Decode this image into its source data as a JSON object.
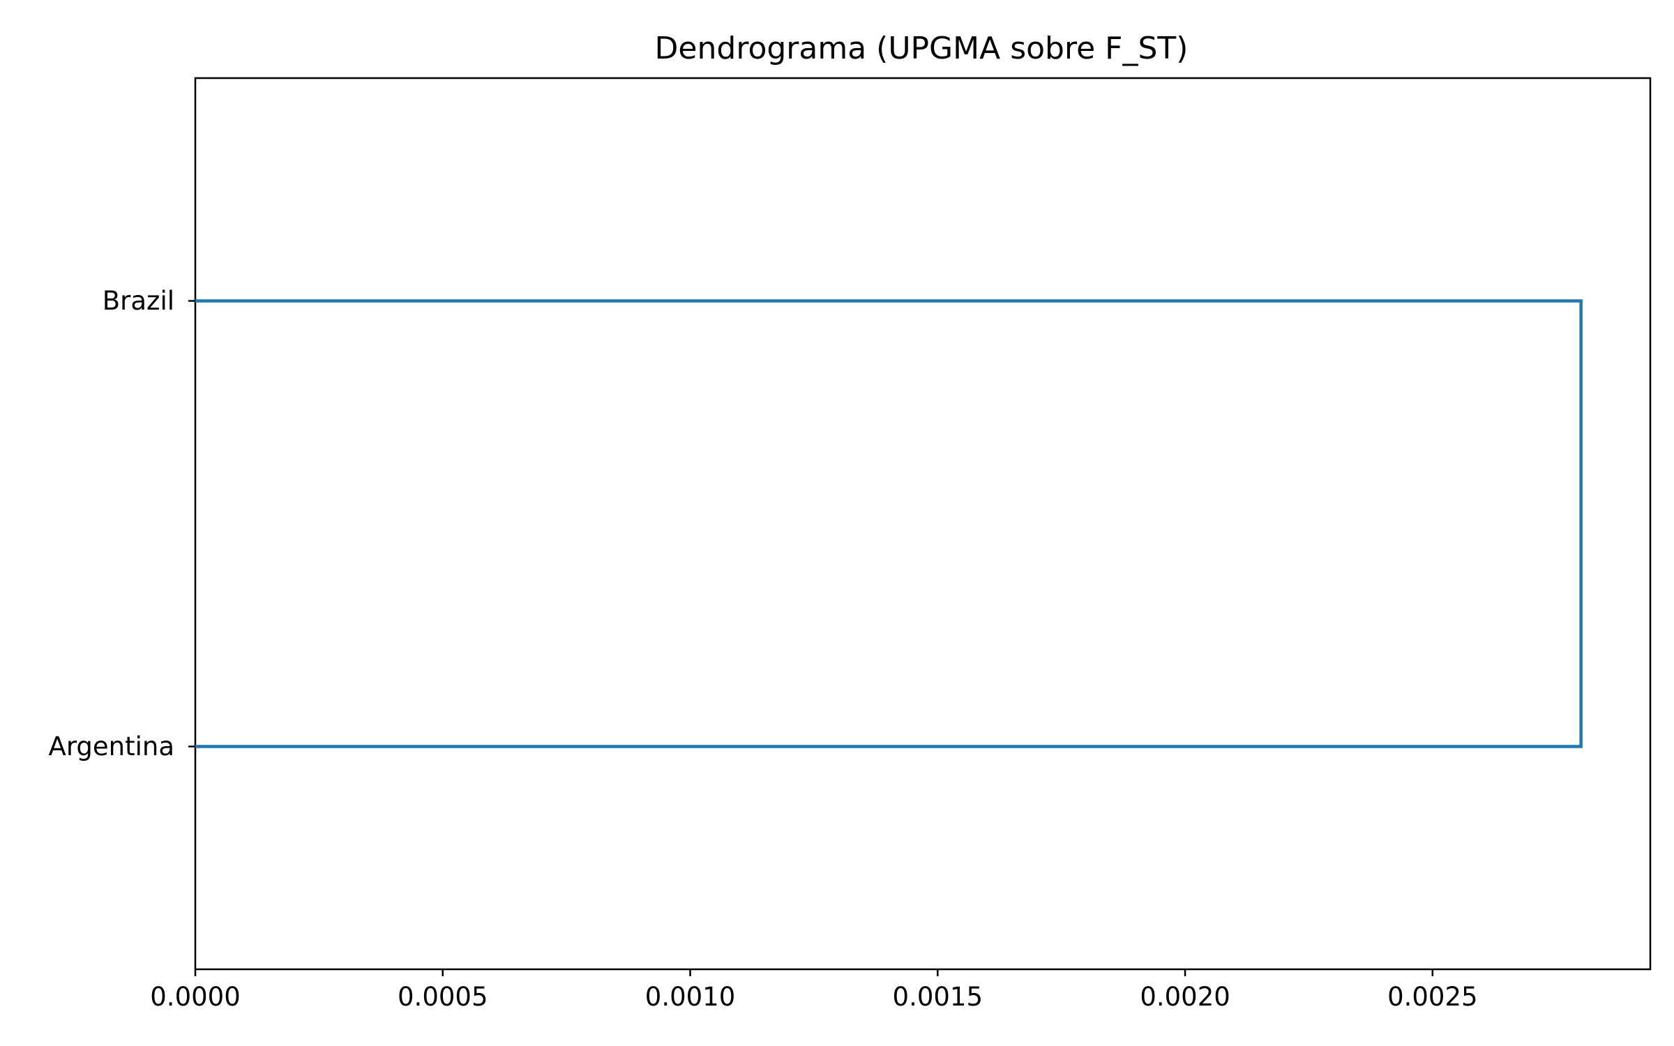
{
  "chart_data": {
    "type": "dendrogram",
    "title": "Dendrograma (UPGMA sobre F_ST)",
    "xlabel": "",
    "ylabel": "",
    "orientation": "right",
    "xlim": [
      0,
      0.00294
    ],
    "x_ticks": [
      0.0,
      0.0005,
      0.001,
      0.0015,
      0.002,
      0.0025
    ],
    "x_tick_labels": [
      "0.0000",
      "0.0005",
      "0.0010",
      "0.0015",
      "0.0020",
      "0.0025"
    ],
    "leaves": [
      "Brazil",
      "Argentina"
    ],
    "links": [
      {
        "left": "Brazil",
        "right": "Argentina",
        "height": 0.0028
      }
    ],
    "link_color": "#1f77b4",
    "grid": false,
    "legend": "none"
  }
}
